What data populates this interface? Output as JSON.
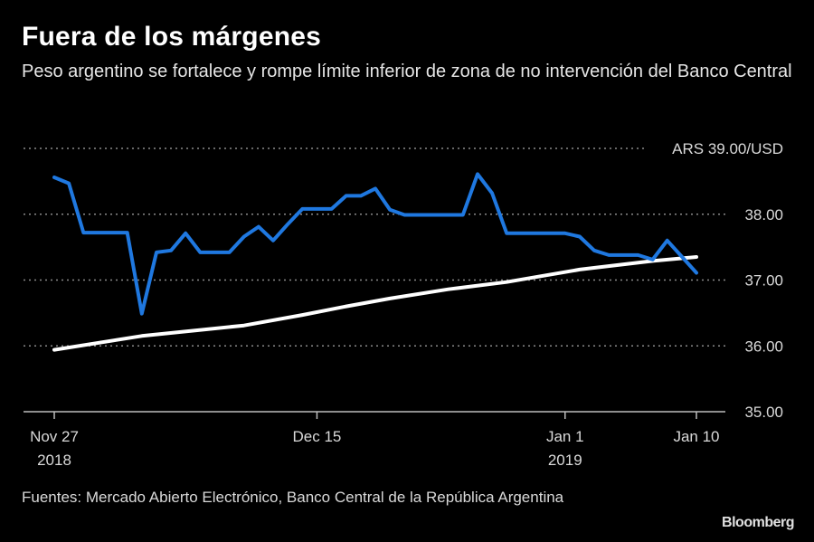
{
  "chart_data": {
    "type": "line",
    "title": "Fuera de los márgenes",
    "subtitle": "Peso argentino se fortalece y rompe límite inferior de zona de no intervención del Banco Central",
    "source": "Fuentes: Mercado Abierto Electrónico, Banco Central de la República Argentina",
    "ylabel_unit": "ARS 39.00/USD",
    "ylim": [
      35,
      39
    ],
    "y_ticks": [
      "35.00",
      "36.00",
      "37.00",
      "38.00"
    ],
    "grid": true,
    "x_start": "2018-11-27",
    "x_end": "2019-01-10",
    "x_ticks": [
      {
        "date": "2018-11-27",
        "label": "Nov 27",
        "sublabel": "2018"
      },
      {
        "date": "2018-12-15",
        "label": "Dec 15",
        "sublabel": ""
      },
      {
        "date": "2019-01-01",
        "label": "Jan 1",
        "sublabel": "2019"
      },
      {
        "date": "2019-01-10",
        "label": "Jan 10",
        "sublabel": ""
      }
    ],
    "series": [
      {
        "color": "#1f78e0",
        "points": [
          [
            "2018-11-27",
            38.56
          ],
          [
            "2018-11-28",
            38.47
          ],
          [
            "2018-11-29",
            37.72
          ],
          [
            "2018-12-02",
            37.72
          ],
          [
            "2018-12-03",
            36.49
          ],
          [
            "2018-12-04",
            37.42
          ],
          [
            "2018-12-05",
            37.45
          ],
          [
            "2018-12-06",
            37.71
          ],
          [
            "2018-12-07",
            37.42
          ],
          [
            "2018-12-09",
            37.42
          ],
          [
            "2018-12-10",
            37.66
          ],
          [
            "2018-12-11",
            37.81
          ],
          [
            "2018-12-12",
            37.6
          ],
          [
            "2018-12-13",
            37.85
          ],
          [
            "2018-12-14",
            38.08
          ],
          [
            "2018-12-16",
            38.08
          ],
          [
            "2018-12-17",
            38.28
          ],
          [
            "2018-12-18",
            38.28
          ],
          [
            "2018-12-19",
            38.39
          ],
          [
            "2018-12-20",
            38.07
          ],
          [
            "2018-12-21",
            37.99
          ],
          [
            "2018-12-25",
            37.99
          ],
          [
            "2018-12-26",
            38.61
          ],
          [
            "2018-12-27",
            38.32
          ],
          [
            "2018-12-28",
            37.71
          ],
          [
            "2019-01-01",
            37.71
          ],
          [
            "2019-01-02",
            37.66
          ],
          [
            "2019-01-03",
            37.45
          ],
          [
            "2019-01-04",
            37.38
          ],
          [
            "2019-01-06",
            37.38
          ],
          [
            "2019-01-07",
            37.31
          ],
          [
            "2019-01-08",
            37.6
          ],
          [
            "2019-01-10",
            37.11
          ]
        ]
      },
      {
        "color": "#ffffff",
        "points": [
          [
            "2018-11-27",
            35.94
          ],
          [
            "2018-12-03",
            36.15
          ],
          [
            "2018-12-10",
            36.31
          ],
          [
            "2018-12-14",
            36.47
          ],
          [
            "2018-12-17",
            36.6
          ],
          [
            "2018-12-20",
            36.72
          ],
          [
            "2018-12-24",
            36.86
          ],
          [
            "2018-12-28",
            36.97
          ],
          [
            "2019-01-02",
            37.16
          ],
          [
            "2019-01-07",
            37.29
          ],
          [
            "2019-01-10",
            37.35
          ]
        ]
      }
    ]
  },
  "brand": "Bloomberg"
}
